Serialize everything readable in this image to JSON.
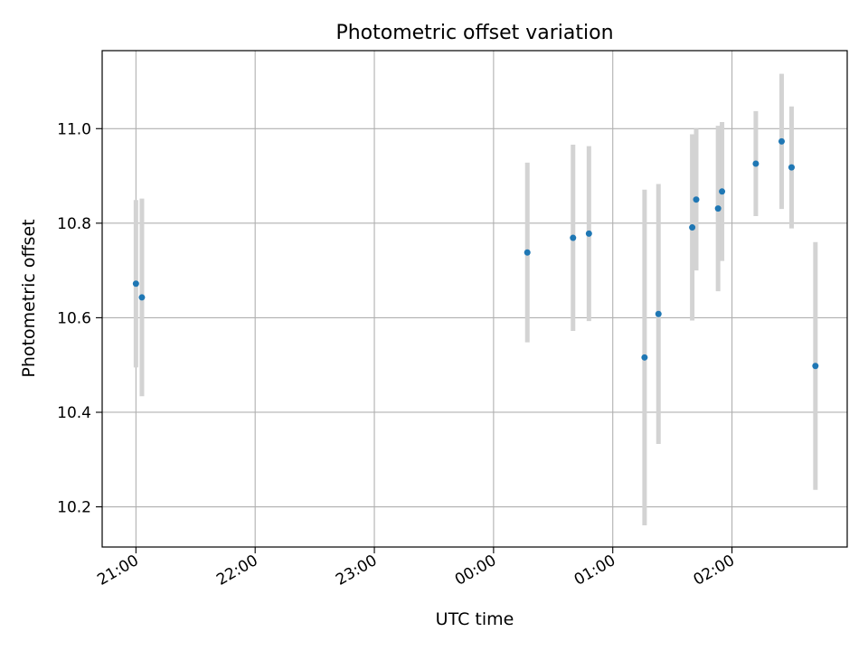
{
  "chart_data": {
    "type": "scatter",
    "title": "Photometric offset variation",
    "xlabel": "UTC time",
    "ylabel": "Photometric offset",
    "xlim": [
      "20:43",
      "23:00 (+4:00)"
    ],
    "xtick_labels": [
      "21:00",
      "22:00",
      "23:00",
      "00:00",
      "01:00",
      "02:00"
    ],
    "xtick_minutes": [
      0,
      60,
      120,
      180,
      240,
      300
    ],
    "x_start": "21:00",
    "x_end_minutes": 358,
    "x_min_minutes": -17,
    "ylim": [
      10.115,
      11.165
    ],
    "yticks": [
      10.2,
      10.4,
      10.6,
      10.8,
      11.0
    ],
    "ytick_labels": [
      "10.2",
      "10.4",
      "10.6",
      "10.8",
      "11.0"
    ],
    "grid": true,
    "marker_color": "#1f77b4",
    "errorbar_color": "#d3d3d3",
    "points": [
      {
        "x": "21:00",
        "y": 10.672,
        "err": 0.177
      },
      {
        "x": "21:03",
        "y": 10.643,
        "err": 0.209
      },
      {
        "x": "00:17",
        "y": 10.738,
        "err": 0.19
      },
      {
        "x": "00:40",
        "y": 10.769,
        "err": 0.197
      },
      {
        "x": "00:48",
        "y": 10.778,
        "err": 0.185
      },
      {
        "x": "01:16",
        "y": 10.516,
        "err": 0.355
      },
      {
        "x": "01:23",
        "y": 10.608,
        "err": 0.275
      },
      {
        "x": "01:40",
        "y": 10.791,
        "err": 0.197
      },
      {
        "x": "01:42",
        "y": 10.85,
        "err": 0.15
      },
      {
        "x": "01:53",
        "y": 10.831,
        "err": 0.175
      },
      {
        "x": "01:55",
        "y": 10.867,
        "err": 0.147
      },
      {
        "x": "02:12",
        "y": 10.926,
        "err": 0.111
      },
      {
        "x": "02:25",
        "y": 10.973,
        "err": 0.143
      },
      {
        "x": "02:30",
        "y": 10.918,
        "err": 0.129
      },
      {
        "x": "02:42",
        "y": 10.498,
        "err": 0.262
      }
    ]
  }
}
